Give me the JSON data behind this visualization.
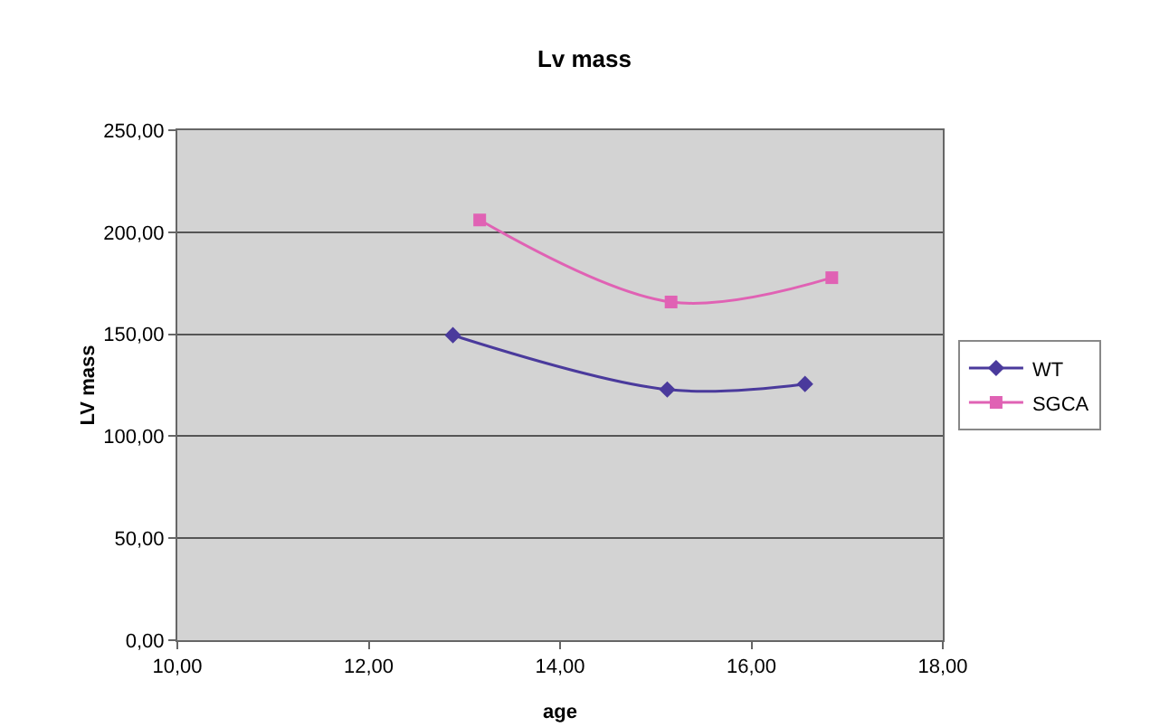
{
  "chart_data": {
    "type": "line",
    "title": "Lv mass",
    "xlabel": "age",
    "ylabel": "LV mass",
    "series": [
      {
        "name": "WT",
        "color": "#4a3a9c",
        "x": [
          12.88,
          15.12,
          16.56
        ],
        "values": [
          149.5,
          122.9,
          125.6
        ],
        "marker": "diamond"
      },
      {
        "name": "SGCA",
        "color": "#e062b4",
        "x": [
          13.16,
          15.16,
          16.84
        ],
        "values": [
          206,
          165.8,
          177.7
        ],
        "marker": "square"
      }
    ],
    "xlim": [
      10,
      18
    ],
    "xticks": [
      {
        "value": 10,
        "label": "10,00"
      },
      {
        "value": 12,
        "label": "12,00"
      },
      {
        "value": 14,
        "label": "14,00"
      },
      {
        "value": 16,
        "label": "16,00"
      },
      {
        "value": 18,
        "label": "18,00"
      }
    ],
    "ylim": [
      0,
      250
    ],
    "yticks": [
      {
        "value": 0,
        "label": "0,00"
      },
      {
        "value": 50,
        "label": "50,00"
      },
      {
        "value": 100,
        "label": "100,00"
      },
      {
        "value": 150,
        "label": "150,00"
      },
      {
        "value": 200,
        "label": "200,00"
      },
      {
        "value": 250,
        "label": "250,00"
      }
    ],
    "grid": "y",
    "legend": "right",
    "line_style": "solid"
  }
}
